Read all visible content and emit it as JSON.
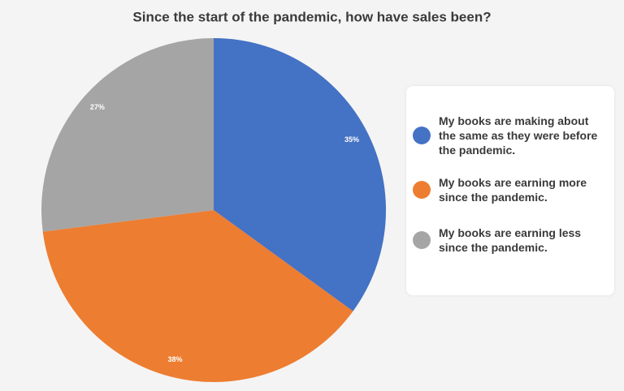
{
  "chart_data": {
    "type": "pie",
    "title": "Since the start of the pandemic, how have sales been?",
    "categories": [
      "My books are making about the same as they were before the pandemic.",
      "My books are earning more since the pandemic.",
      "My books are earning less since the pandemic."
    ],
    "values": [
      35,
      38,
      27
    ],
    "value_labels": [
      "35%",
      "38%",
      "27%"
    ],
    "colors": [
      "#4472c4",
      "#ed7d31",
      "#a5a5a5"
    ],
    "legend": "right"
  }
}
